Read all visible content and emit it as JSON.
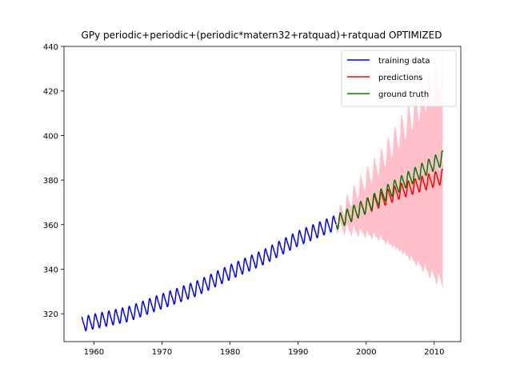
{
  "chart_data": {
    "type": "line",
    "title": "GPy periodic+periodic+(periodic*matern32+ratquad)+ratquad OPTIMIZED",
    "xlabel": "",
    "ylabel": "",
    "xlim": [
      1955.6,
      2013.9
    ],
    "ylim": [
      307.5,
      440
    ],
    "xticks": [
      1960,
      1970,
      1980,
      1990,
      2000,
      2010
    ],
    "yticks": [
      320,
      340,
      360,
      380,
      400,
      420,
      440
    ],
    "legend_position": "upper right",
    "grid": false,
    "series": [
      {
        "name": "training data",
        "color": "#0000ff",
        "x_range": [
          1958.2,
          1995.6
        ],
        "trend": [
          [
            1958.2,
            315.3
          ],
          [
            1965,
            319.8
          ],
          [
            1970,
            325.6
          ],
          [
            1975,
            331.2
          ],
          [
            1980,
            338.6
          ],
          [
            1985,
            345.5
          ],
          [
            1990,
            353.8
          ],
          [
            1995.6,
            361.0
          ]
        ],
        "seasonal_amplitude": 3.0
      },
      {
        "name": "predictions",
        "color": "#ff0000",
        "x_range": [
          1995.6,
          2011.3
        ],
        "trend": [
          [
            1995.6,
            361.0
          ],
          [
            2000,
            368.3
          ],
          [
            2005,
            375.0
          ],
          [
            2011.3,
            381.6
          ]
        ],
        "seasonal_amplitude": 3.0
      },
      {
        "name": "ground truth",
        "color": "#008000",
        "x_range": [
          1995.6,
          2011.3
        ],
        "trend": [
          [
            1995.6,
            361.0
          ],
          [
            2000,
            368.4
          ],
          [
            2005,
            378.3
          ],
          [
            2011.3,
            390.0
          ]
        ],
        "seasonal_amplitude": 3.0
      }
    ],
    "confidence_band": {
      "color": "#ffc0cb",
      "x_range": [
        1995.6,
        2011.3
      ],
      "halfwidth": [
        [
          1995.6,
          2
        ],
        [
          1998,
          8
        ],
        [
          2002,
          17
        ],
        [
          2006,
          30
        ],
        [
          2011.3,
          48
        ]
      ]
    }
  }
}
